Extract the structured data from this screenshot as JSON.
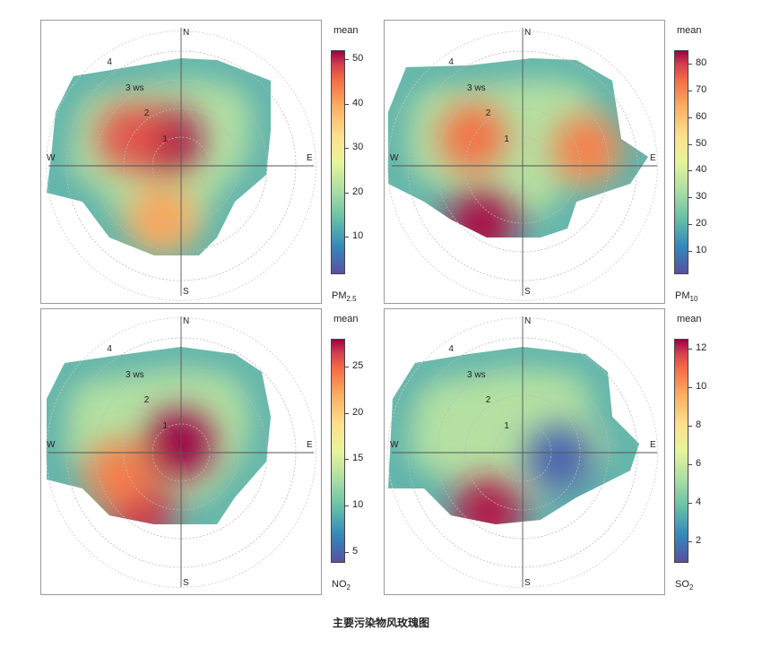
{
  "caption": "主要污染物风玫瑰图",
  "chart_data": [
    {
      "type": "heatmap",
      "subtype": "polar-plot",
      "pollutant": "PM2.5",
      "pollutant_base": "PM",
      "pollutant_sub": "2.5",
      "legend_title": "mean",
      "compass": [
        "N",
        "E",
        "S",
        "W"
      ],
      "ring_labels": [
        "1",
        "2",
        "3 ws",
        "4"
      ],
      "scale_min": 2,
      "scale_max": 52,
      "colorbar_ticks": [
        10,
        20,
        30,
        40,
        50
      ],
      "hotspots": [
        {
          "direction_deg": 330,
          "speed": 1.0,
          "value": 51
        },
        {
          "direction_deg": 300,
          "speed": 2.0,
          "value": 44
        },
        {
          "direction_deg": 200,
          "speed": 2.0,
          "value": 36
        }
      ]
    },
    {
      "type": "heatmap",
      "subtype": "polar-plot",
      "pollutant": "PM10",
      "pollutant_base": "PM",
      "pollutant_sub": "10",
      "legend_title": "mean",
      "compass": [
        "N",
        "E",
        "S",
        "W"
      ],
      "ring_labels": [
        "1",
        "2",
        "3 ws",
        "4"
      ],
      "scale_min": 2,
      "scale_max": 85,
      "colorbar_ticks": [
        10,
        20,
        30,
        40,
        50,
        60,
        70,
        80
      ],
      "hotspots": [
        {
          "direction_deg": 215,
          "speed": 2.5,
          "value": 83
        },
        {
          "direction_deg": 300,
          "speed": 2.0,
          "value": 66
        },
        {
          "direction_deg": 75,
          "speed": 2.3,
          "value": 64
        }
      ]
    },
    {
      "type": "heatmap",
      "subtype": "polar-plot",
      "pollutant": "NO2",
      "pollutant_base": "NO",
      "pollutant_sub": "2",
      "legend_title": "mean",
      "compass": [
        "N",
        "E",
        "S",
        "W"
      ],
      "ring_labels": [
        "1",
        "2",
        "3 ws",
        "4"
      ],
      "scale_min": 4,
      "scale_max": 28,
      "colorbar_ticks": [
        5,
        10,
        15,
        20,
        25
      ],
      "hotspots": [
        {
          "direction_deg": 350,
          "speed": 0.3,
          "value": 28
        },
        {
          "direction_deg": 215,
          "speed": 2.5,
          "value": 26
        },
        {
          "direction_deg": 250,
          "speed": 2.3,
          "value": 22
        }
      ]
    },
    {
      "type": "heatmap",
      "subtype": "polar-plot",
      "pollutant": "SO2",
      "pollutant_base": "SO",
      "pollutant_sub": "2",
      "legend_title": "mean",
      "compass": [
        "N",
        "E",
        "S",
        "W"
      ],
      "ring_labels": [
        "1",
        "2",
        "3 ws",
        "4"
      ],
      "scale_min": 1,
      "scale_max": 12.5,
      "colorbar_ticks": [
        2,
        4,
        6,
        8,
        10,
        12
      ],
      "hotspots": [
        {
          "direction_deg": 210,
          "speed": 2.4,
          "value": 12
        },
        {
          "direction_deg": 100,
          "speed": 1.3,
          "value": 1.5
        }
      ]
    }
  ]
}
